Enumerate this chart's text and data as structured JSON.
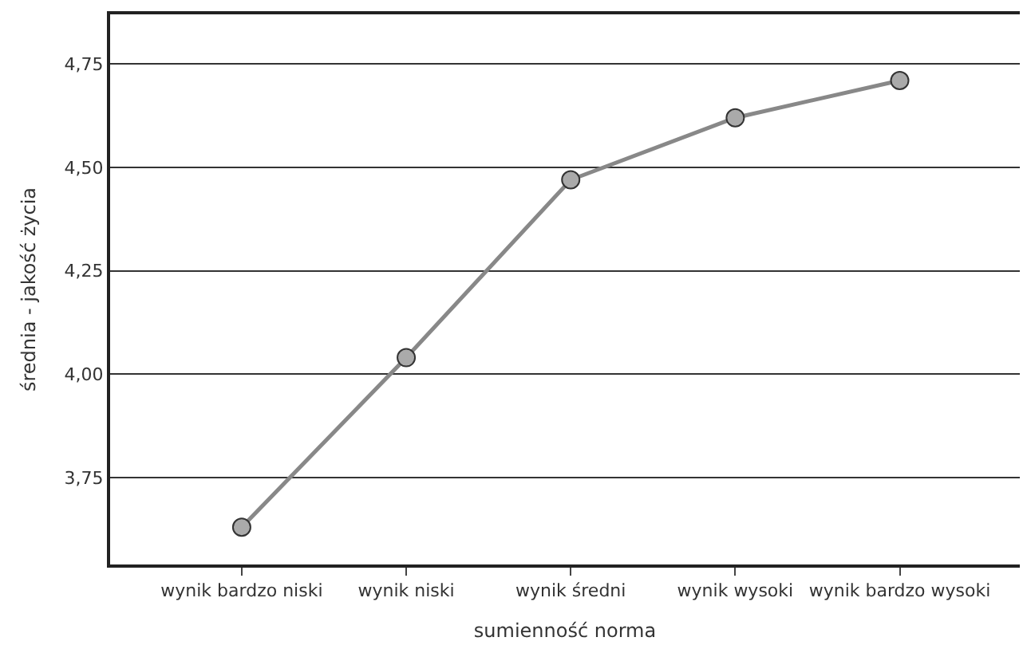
{
  "chart_data": {
    "type": "line",
    "xlabel": "sumienność norma",
    "ylabel": "średnia - jakość życia",
    "categories": [
      "wynik bardzo niski",
      "wynik niski",
      "wynik średni",
      "wynik wysoki",
      "wynik bardzo wysoki"
    ],
    "series": [
      {
        "color": "#888888",
        "values": [
          3.63,
          4.04,
          4.47,
          4.62,
          4.71
        ]
      }
    ],
    "ylim": [
      3.54,
      4.87
    ],
    "yticks": [
      {
        "value": 3.75,
        "label": "3,75"
      },
      {
        "value": 4.0,
        "label": "4,00"
      },
      {
        "value": 4.25,
        "label": "4,25"
      },
      {
        "value": 4.5,
        "label": "4,50"
      },
      {
        "value": 4.75,
        "label": "4,75"
      }
    ],
    "grid": "y",
    "marker": "circle",
    "line_style": "solid",
    "legend": false
  }
}
